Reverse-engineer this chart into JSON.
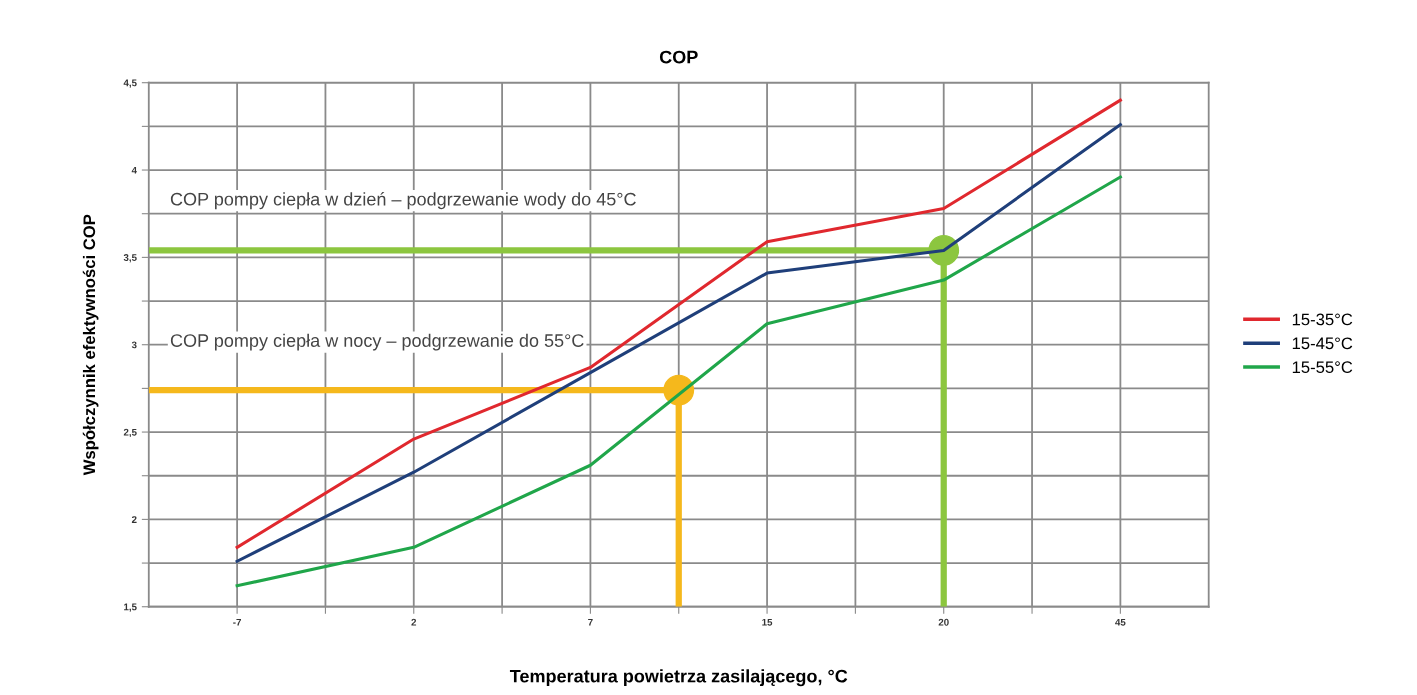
{
  "chart_data": {
    "type": "line",
    "title": "COP",
    "xlabel": "Temperatura powietrza zasilającego, °C",
    "ylabel": "Współczynnik efektywności COP",
    "categories": [
      "-7",
      null,
      "2",
      null,
      "7",
      null,
      "15",
      null,
      "20",
      null,
      "45"
    ],
    "ylim": [
      1.5,
      4.5
    ],
    "yticks": [
      {
        "value": 1.5,
        "label": "1,5"
      },
      {
        "value": 1.75,
        "label": null
      },
      {
        "value": 2,
        "label": "2"
      },
      {
        "value": 2.25,
        "label": null
      },
      {
        "value": 2.5,
        "label": "2,5"
      },
      {
        "value": 2.75,
        "label": null
      },
      {
        "value": 3,
        "label": "3"
      },
      {
        "value": 3.25,
        "label": null
      },
      {
        "value": 3.5,
        "label": "3,5"
      },
      {
        "value": 3.75,
        "label": null
      },
      {
        "value": 4,
        "label": "4"
      },
      {
        "value": 4.25,
        "label": null
      },
      {
        "value": 4.5,
        "label": "4,5"
      }
    ],
    "grid": true,
    "legend": "right",
    "series": [
      {
        "name": "15-35°C",
        "color": "#e0282e",
        "values": [
          1.84,
          null,
          2.46,
          null,
          2.87,
          null,
          3.59,
          null,
          3.78,
          null,
          4.4
        ]
      },
      {
        "name": "15-45°C",
        "color": "#1f3f7a",
        "values": [
          1.76,
          null,
          2.27,
          null,
          2.84,
          null,
          3.41,
          null,
          3.54,
          null,
          4.26
        ]
      },
      {
        "name": "15-55°C",
        "color": "#20a64a",
        "values": [
          1.62,
          null,
          1.84,
          null,
          2.31,
          null,
          3.12,
          null,
          3.37,
          null,
          3.96
        ]
      },
      {
        "type": "scatter",
        "color": "#f5b81c",
        "marker": "circle",
        "values": [
          null,
          null,
          null,
          null,
          null,
          2.74,
          null,
          null,
          null,
          null,
          null
        ]
      },
      {
        "type": "scatter",
        "color": "#8cc63f",
        "marker": "circle",
        "values": [
          null,
          null,
          null,
          null,
          null,
          null,
          null,
          null,
          3.54,
          null,
          null
        ]
      }
    ],
    "ref_lines": [
      {
        "axis": "y",
        "value": 2.74,
        "color": "#f5b81c"
      },
      {
        "axis": "y",
        "value": 3.54,
        "color": "#8cc63f"
      }
    ],
    "annotations": [
      "COP pompy ciepła w dzień – podgrzewanie wody do 45°C",
      "COP pompy ciepła w nocy – podgrzewanie do 55°C"
    ]
  }
}
